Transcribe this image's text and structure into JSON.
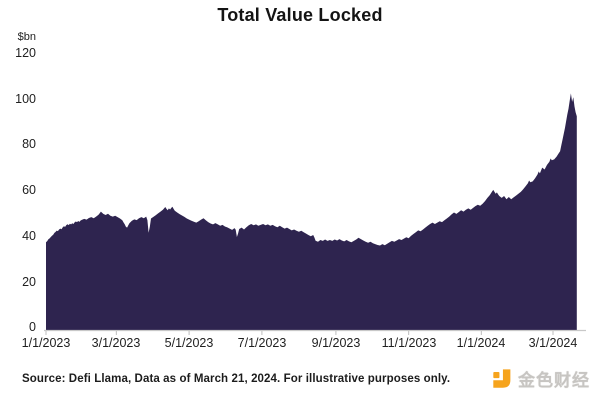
{
  "title": "Total Value Locked",
  "chart_data": {
    "type": "area",
    "title": "Total Value Locked",
    "unit_label": "$bn",
    "series_name": "Total Value Locked ($bn)",
    "fill_color": "#2e244f",
    "axis_color": "#c8c8c8",
    "ylim": [
      0,
      120
    ],
    "y_ticks": [
      0,
      20,
      40,
      60,
      80,
      100,
      120
    ],
    "y_tick_labels": [
      "120",
      "100",
      "80",
      "60",
      "40",
      "20",
      "0"
    ],
    "x_tick_labels": [
      "1/1/2023",
      "3/1/2023",
      "5/1/2023",
      "7/1/2023",
      "9/1/2023",
      "11/1/2023",
      "1/1/2024",
      "3/1/2024"
    ],
    "x_tick_days": [
      0,
      59,
      120,
      181,
      243,
      304,
      365,
      425
    ],
    "x_range_days": [
      0,
      445
    ],
    "x_unit": "days since 1/1/2023",
    "grid": "off",
    "legend": "none",
    "points": [
      [
        0,
        38.3
      ],
      [
        1,
        38.8
      ],
      [
        2,
        39.6
      ],
      [
        3,
        40.0
      ],
      [
        4,
        40.6
      ],
      [
        5,
        41.2
      ],
      [
        6,
        41.6
      ],
      [
        7,
        42.4
      ],
      [
        8,
        42.8
      ],
      [
        9,
        43.4
      ],
      [
        10,
        43.2
      ],
      [
        11,
        43.9
      ],
      [
        12,
        44.3
      ],
      [
        13,
        44.0
      ],
      [
        14,
        44.8
      ],
      [
        15,
        45.3
      ],
      [
        16,
        45.0
      ],
      [
        17,
        45.8
      ],
      [
        18,
        46.2
      ],
      [
        19,
        45.8
      ],
      [
        20,
        46.4
      ],
      [
        21,
        46.1
      ],
      [
        22,
        46.6
      ],
      [
        23,
        46.3
      ],
      [
        24,
        47.0
      ],
      [
        25,
        47.4
      ],
      [
        26,
        47.1
      ],
      [
        27,
        47.6
      ],
      [
        28,
        47.2
      ],
      [
        29,
        47.8
      ],
      [
        30,
        48.1
      ],
      [
        32,
        48.5
      ],
      [
        34,
        48.2
      ],
      [
        36,
        48.9
      ],
      [
        38,
        49.3
      ],
      [
        40,
        48.8
      ],
      [
        42,
        49.5
      ],
      [
        44,
        50.3
      ],
      [
        45,
        51.0
      ],
      [
        46,
        51.7
      ],
      [
        47,
        51.2
      ],
      [
        48,
        50.7
      ],
      [
        50,
        50.2
      ],
      [
        52,
        50.8
      ],
      [
        54,
        49.9
      ],
      [
        56,
        49.5
      ],
      [
        58,
        49.9
      ],
      [
        60,
        49.3
      ],
      [
        62,
        48.7
      ],
      [
        64,
        47.9
      ],
      [
        65,
        47.0
      ],
      [
        66,
        46.2
      ],
      [
        67,
        45.1
      ],
      [
        68,
        44.7
      ],
      [
        69,
        45.7
      ],
      [
        70,
        46.7
      ],
      [
        72,
        47.7
      ],
      [
        74,
        48.3
      ],
      [
        76,
        48.0
      ],
      [
        78,
        48.8
      ],
      [
        80,
        49.3
      ],
      [
        82,
        48.8
      ],
      [
        84,
        49.5
      ],
      [
        85,
        48.0
      ],
      [
        86,
        42.5
      ],
      [
        87,
        45.0
      ],
      [
        88,
        48.7
      ],
      [
        90,
        49.4
      ],
      [
        92,
        50.1
      ],
      [
        94,
        50.9
      ],
      [
        96,
        51.7
      ],
      [
        98,
        52.5
      ],
      [
        100,
        53.7
      ],
      [
        101,
        52.9
      ],
      [
        102,
        52.3
      ],
      [
        103,
        53.1
      ],
      [
        104,
        52.6
      ],
      [
        105,
        53.3
      ],
      [
        106,
        53.8
      ],
      [
        107,
        52.9
      ],
      [
        108,
        52.1
      ],
      [
        110,
        51.3
      ],
      [
        112,
        50.6
      ],
      [
        114,
        50.0
      ],
      [
        116,
        49.4
      ],
      [
        118,
        48.7
      ],
      [
        120,
        48.2
      ],
      [
        122,
        47.7
      ],
      [
        124,
        47.3
      ],
      [
        126,
        46.9
      ],
      [
        128,
        47.5
      ],
      [
        130,
        48.2
      ],
      [
        132,
        48.8
      ],
      [
        134,
        47.9
      ],
      [
        136,
        47.1
      ],
      [
        138,
        46.5
      ],
      [
        140,
        46.1
      ],
      [
        142,
        46.7
      ],
      [
        144,
        46.1
      ],
      [
        146,
        45.5
      ],
      [
        148,
        45.9
      ],
      [
        150,
        45.2
      ],
      [
        152,
        44.8
      ],
      [
        154,
        44.3
      ],
      [
        156,
        43.7
      ],
      [
        158,
        44.5
      ],
      [
        159,
        43.8
      ],
      [
        160,
        40.6
      ],
      [
        161,
        42.2
      ],
      [
        162,
        44.1
      ],
      [
        164,
        44.7
      ],
      [
        166,
        43.9
      ],
      [
        168,
        44.9
      ],
      [
        170,
        45.7
      ],
      [
        172,
        46.3
      ],
      [
        174,
        45.7
      ],
      [
        176,
        46.1
      ],
      [
        178,
        45.5
      ],
      [
        180,
        45.9
      ],
      [
        182,
        46.3
      ],
      [
        184,
        45.7
      ],
      [
        186,
        46.1
      ],
      [
        188,
        45.5
      ],
      [
        190,
        45.9
      ],
      [
        192,
        45.3
      ],
      [
        194,
        44.9
      ],
      [
        196,
        45.5
      ],
      [
        198,
        44.9
      ],
      [
        200,
        44.3
      ],
      [
        202,
        44.7
      ],
      [
        204,
        44.1
      ],
      [
        206,
        43.5
      ],
      [
        208,
        43.9
      ],
      [
        210,
        43.3
      ],
      [
        212,
        42.9
      ],
      [
        214,
        43.3
      ],
      [
        216,
        42.7
      ],
      [
        218,
        42.1
      ],
      [
        220,
        41.5
      ],
      [
        222,
        40.9
      ],
      [
        224,
        41.5
      ],
      [
        225,
        40.4
      ],
      [
        226,
        39.0
      ],
      [
        228,
        38.5
      ],
      [
        230,
        39.3
      ],
      [
        232,
        38.9
      ],
      [
        234,
        39.5
      ],
      [
        236,
        38.9
      ],
      [
        238,
        39.3
      ],
      [
        240,
        38.9
      ],
      [
        242,
        39.5
      ],
      [
        244,
        39.1
      ],
      [
        246,
        39.7
      ],
      [
        248,
        39.1
      ],
      [
        250,
        38.7
      ],
      [
        252,
        39.3
      ],
      [
        254,
        38.7
      ],
      [
        256,
        38.3
      ],
      [
        258,
        38.9
      ],
      [
        260,
        39.5
      ],
      [
        262,
        40.3
      ],
      [
        264,
        39.7
      ],
      [
        266,
        39.1
      ],
      [
        268,
        38.5
      ],
      [
        270,
        38.1
      ],
      [
        272,
        38.5
      ],
      [
        274,
        37.9
      ],
      [
        276,
        37.5
      ],
      [
        278,
        37.1
      ],
      [
        280,
        36.9
      ],
      [
        282,
        37.5
      ],
      [
        284,
        37.0
      ],
      [
        286,
        37.7
      ],
      [
        288,
        38.3
      ],
      [
        290,
        38.9
      ],
      [
        292,
        38.5
      ],
      [
        294,
        39.1
      ],
      [
        296,
        39.7
      ],
      [
        298,
        39.3
      ],
      [
        300,
        39.9
      ],
      [
        302,
        40.5
      ],
      [
        304,
        40.1
      ],
      [
        306,
        41.1
      ],
      [
        308,
        41.9
      ],
      [
        310,
        42.7
      ],
      [
        312,
        43.5
      ],
      [
        314,
        43.1
      ],
      [
        316,
        43.9
      ],
      [
        318,
        44.7
      ],
      [
        320,
        45.5
      ],
      [
        322,
        46.3
      ],
      [
        324,
        46.9
      ],
      [
        326,
        46.3
      ],
      [
        328,
        46.9
      ],
      [
        330,
        47.5
      ],
      [
        332,
        47.1
      ],
      [
        334,
        47.9
      ],
      [
        336,
        48.7
      ],
      [
        338,
        49.5
      ],
      [
        340,
        50.5
      ],
      [
        342,
        51.3
      ],
      [
        344,
        50.7
      ],
      [
        346,
        51.5
      ],
      [
        348,
        52.3
      ],
      [
        350,
        51.7
      ],
      [
        352,
        52.5
      ],
      [
        354,
        53.1
      ],
      [
        356,
        52.5
      ],
      [
        358,
        53.3
      ],
      [
        360,
        54.1
      ],
      [
        362,
        54.7
      ],
      [
        364,
        54.3
      ],
      [
        366,
        55.1
      ],
      [
        368,
        56.3
      ],
      [
        370,
        57.7
      ],
      [
        372,
        58.9
      ],
      [
        374,
        60.5
      ],
      [
        375,
        61.2
      ],
      [
        376,
        60.3
      ],
      [
        377,
        59.5
      ],
      [
        378,
        60.1
      ],
      [
        379,
        59.2
      ],
      [
        380,
        58.5
      ],
      [
        382,
        57.7
      ],
      [
        384,
        58.5
      ],
      [
        386,
        57.1
      ],
      [
        388,
        58.1
      ],
      [
        390,
        57.1
      ],
      [
        392,
        57.9
      ],
      [
        394,
        58.7
      ],
      [
        396,
        59.5
      ],
      [
        398,
        60.3
      ],
      [
        400,
        61.5
      ],
      [
        402,
        62.7
      ],
      [
        404,
        64.1
      ],
      [
        405,
        65.3
      ],
      [
        406,
        64.5
      ],
      [
        408,
        64.9
      ],
      [
        410,
        66.3
      ],
      [
        412,
        67.9
      ],
      [
        413,
        69.2
      ],
      [
        414,
        68.4
      ],
      [
        416,
        70.9
      ],
      [
        418,
        70.1
      ],
      [
        420,
        72.1
      ],
      [
        422,
        73.5
      ],
      [
        423,
        74.9
      ],
      [
        424,
        74.1
      ],
      [
        426,
        74.5
      ],
      [
        428,
        75.7
      ],
      [
        430,
        77.3
      ],
      [
        431,
        78.1
      ],
      [
        432,
        80.6
      ],
      [
        433,
        83.1
      ],
      [
        434,
        85.6
      ],
      [
        435,
        88.1
      ],
      [
        436,
        91.1
      ],
      [
        437,
        94.1
      ],
      [
        438,
        96.6
      ],
      [
        439,
        100.1
      ],
      [
        440,
        103.3
      ],
      [
        441,
        99.6
      ],
      [
        442,
        101.6
      ],
      [
        443,
        97.6
      ],
      [
        444,
        95.1
      ],
      [
        445,
        93.3
      ]
    ]
  },
  "footer": {
    "source": "Source: Defi Llama, Data as of March 21, 2024. For illustrative purposes only."
  },
  "watermark": {
    "brand": "金色财经",
    "logo_color": "#f6a41d",
    "text_color": "#c7c5c2"
  }
}
